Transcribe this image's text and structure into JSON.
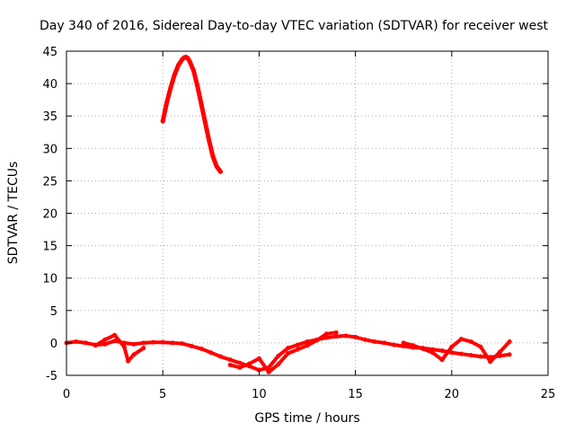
{
  "chart_data": {
    "type": "scatter",
    "title": "Day 340 of 2016, Sidereal Day-to-day VTEC variation (SDTVAR) for receiver west",
    "xlabel": "GPS time / hours",
    "ylabel": "SDTVAR / TECUs",
    "xlim": [
      0,
      25
    ],
    "ylim": [
      -5,
      45
    ],
    "xticks": [
      0,
      5,
      10,
      15,
      20,
      25
    ],
    "yticks": [
      -5,
      0,
      5,
      10,
      15,
      20,
      25,
      30,
      35,
      40,
      45
    ],
    "grid": true,
    "series": [
      {
        "name": "arc-high",
        "color": "#ff0000",
        "x": [
          5.0,
          5.2,
          5.4,
          5.6,
          5.8,
          6.0,
          6.1,
          6.2,
          6.3,
          6.4,
          6.6,
          6.8,
          7.0,
          7.2,
          7.4,
          7.6,
          7.8,
          8.0
        ],
        "y": [
          34.2,
          37.0,
          39.3,
          41.3,
          42.8,
          43.7,
          44.0,
          44.1,
          43.9,
          43.4,
          42.0,
          39.6,
          36.8,
          34.0,
          31.2,
          28.8,
          27.2,
          26.4
        ]
      },
      {
        "name": "arc-low-main",
        "color": "#ff0000",
        "x": [
          0.0,
          0.5,
          1.0,
          1.5,
          2.0,
          2.5,
          3.0,
          3.5,
          4.0,
          4.5,
          5.0,
          5.5,
          6.0,
          6.5,
          7.0,
          7.5,
          8.0,
          8.5,
          9.0,
          9.5,
          10.0,
          10.5,
          11.0,
          11.5,
          12.0,
          12.5,
          13.0,
          13.5,
          14.0,
          14.5,
          15.0,
          15.5,
          16.0,
          16.5,
          17.0,
          17.5,
          18.0,
          18.5,
          19.0,
          19.5,
          20.0,
          20.5,
          21.0,
          21.5,
          22.0,
          22.5,
          23.0
        ],
        "y": [
          0.0,
          0.2,
          0.0,
          -0.3,
          -0.2,
          0.3,
          0.0,
          -0.2,
          0.0,
          0.1,
          0.1,
          0.0,
          -0.1,
          -0.5,
          -0.9,
          -1.5,
          -2.1,
          -2.6,
          -3.1,
          -3.6,
          -4.2,
          -3.8,
          -2.0,
          -0.8,
          -0.3,
          0.2,
          0.5,
          0.8,
          1.0,
          1.1,
          0.9,
          0.5,
          0.2,
          0.0,
          -0.3,
          -0.5,
          -0.7,
          -0.8,
          -1.0,
          -1.2,
          -1.5,
          -1.7,
          -1.9,
          -2.1,
          -2.2,
          -2.0,
          -1.8
        ]
      },
      {
        "name": "arc-low-secondary",
        "color": "#ff0000",
        "x": [
          1.5,
          2.0,
          2.5,
          3.0,
          3.2,
          3.5,
          4.0
        ],
        "y": [
          -0.4,
          0.5,
          1.2,
          -0.6,
          -2.8,
          -1.8,
          -0.8
        ]
      },
      {
        "name": "arc-low-tertiary",
        "color": "#ff0000",
        "x": [
          8.5,
          9.0,
          9.5,
          10.0,
          10.5,
          11.0,
          11.5,
          12.0,
          12.5,
          13.0,
          13.5,
          14.0
        ],
        "y": [
          -3.4,
          -3.8,
          -3.2,
          -2.4,
          -4.5,
          -3.3,
          -1.6,
          -1.0,
          -0.4,
          0.4,
          1.4,
          1.6
        ]
      },
      {
        "name": "arc-low-late",
        "color": "#ff0000",
        "x": [
          17.5,
          18.0,
          18.5,
          19.0,
          19.5,
          20.0,
          20.5,
          21.0,
          21.5,
          22.0,
          22.5,
          23.0
        ],
        "y": [
          0.0,
          -0.4,
          -0.9,
          -1.5,
          -2.6,
          -0.6,
          0.6,
          0.2,
          -0.6,
          -2.9,
          -1.4,
          0.2
        ]
      }
    ]
  }
}
